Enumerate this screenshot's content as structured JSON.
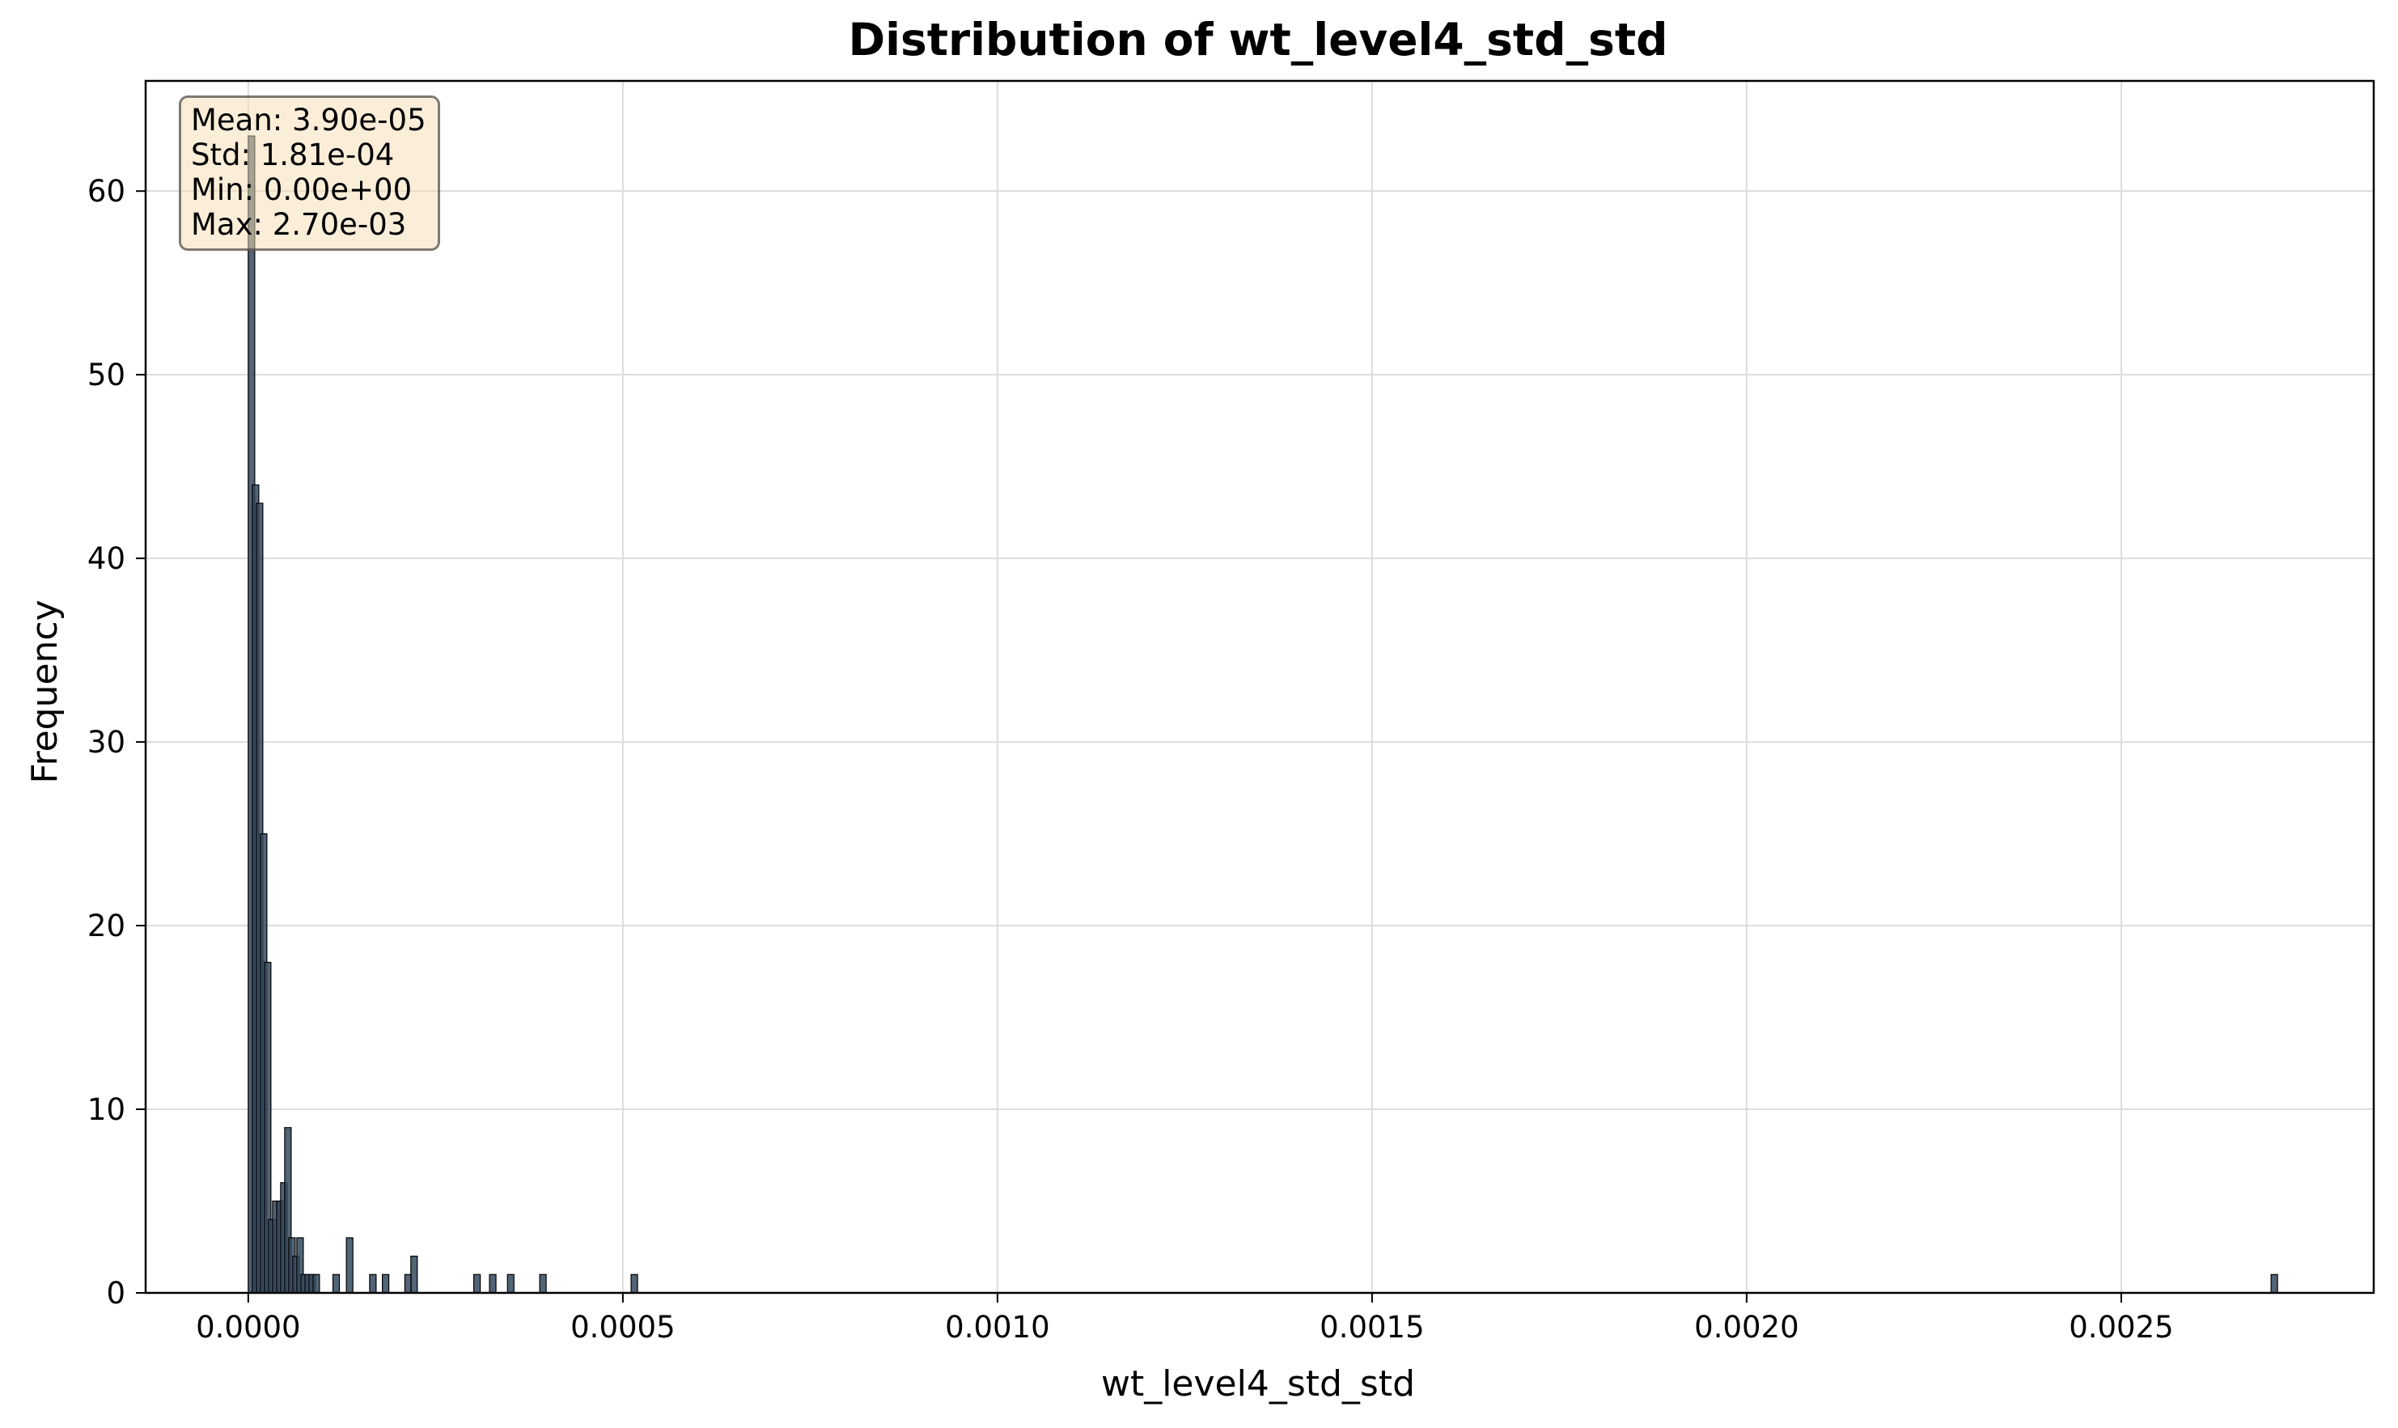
{
  "chart_data": {
    "type": "bar",
    "title": "Distribution of wt_level4_std_std",
    "xlabel": "wt_level4_std_std",
    "ylabel": "Frequency",
    "xlim": [
      -0.000137,
      0.002837
    ],
    "ylim": [
      0,
      66
    ],
    "x_ticks": [
      {
        "value": 0.0,
        "label": "0.0000"
      },
      {
        "value": 0.0005,
        "label": "0.0005"
      },
      {
        "value": 0.001,
        "label": "0.0010"
      },
      {
        "value": 0.0015,
        "label": "0.0015"
      },
      {
        "value": 0.002,
        "label": "0.0020"
      },
      {
        "value": 0.0025,
        "label": "0.0025"
      }
    ],
    "y_ticks": [
      {
        "value": 0,
        "label": "0"
      },
      {
        "value": 10,
        "label": "10"
      },
      {
        "value": 20,
        "label": "20"
      },
      {
        "value": 30,
        "label": "30"
      },
      {
        "value": 40,
        "label": "40"
      },
      {
        "value": 50,
        "label": "50"
      },
      {
        "value": 60,
        "label": "60"
      }
    ],
    "grid": true,
    "bar_color": "#34495e",
    "bin_width": 5.4e-06,
    "bins": [
      {
        "x": 0.0,
        "count": 63
      },
      {
        "x": 5.4e-06,
        "count": 44
      },
      {
        "x": 1.08e-05,
        "count": 43
      },
      {
        "x": 1.62e-05,
        "count": 25
      },
      {
        "x": 2.16e-05,
        "count": 18
      },
      {
        "x": 2.7e-05,
        "count": 4
      },
      {
        "x": 3.24e-05,
        "count": 5
      },
      {
        "x": 3.78e-05,
        "count": 5
      },
      {
        "x": 4.32e-05,
        "count": 6
      },
      {
        "x": 4.86e-05,
        "count": 9
      },
      {
        "x": 5.4e-05,
        "count": 3
      },
      {
        "x": 5.94e-05,
        "count": 2
      },
      {
        "x": 6.48e-05,
        "count": 3
      },
      {
        "x": 7.02e-05,
        "count": 1
      },
      {
        "x": 7.56e-05,
        "count": 1
      },
      {
        "x": 8.1e-05,
        "count": 1
      },
      {
        "x": 8.64e-05,
        "count": 1
      },
      {
        "x": 0.000113,
        "count": 1
      },
      {
        "x": 0.000131,
        "count": 3
      },
      {
        "x": 0.000162,
        "count": 1
      },
      {
        "x": 0.000179,
        "count": 1
      },
      {
        "x": 0.000209,
        "count": 1
      },
      {
        "x": 0.000217,
        "count": 2
      },
      {
        "x": 0.000301,
        "count": 1
      },
      {
        "x": 0.000322,
        "count": 1
      },
      {
        "x": 0.000346,
        "count": 1
      },
      {
        "x": 0.000389,
        "count": 1
      },
      {
        "x": 0.000511,
        "count": 1
      },
      {
        "x": 0.0027,
        "count": 1
      }
    ],
    "stats": {
      "mean": "Mean: 3.90e-05",
      "std": "Std: 1.81e-04",
      "min": "Min: 0.00e+00",
      "max": "Max: 2.70e-03"
    }
  }
}
